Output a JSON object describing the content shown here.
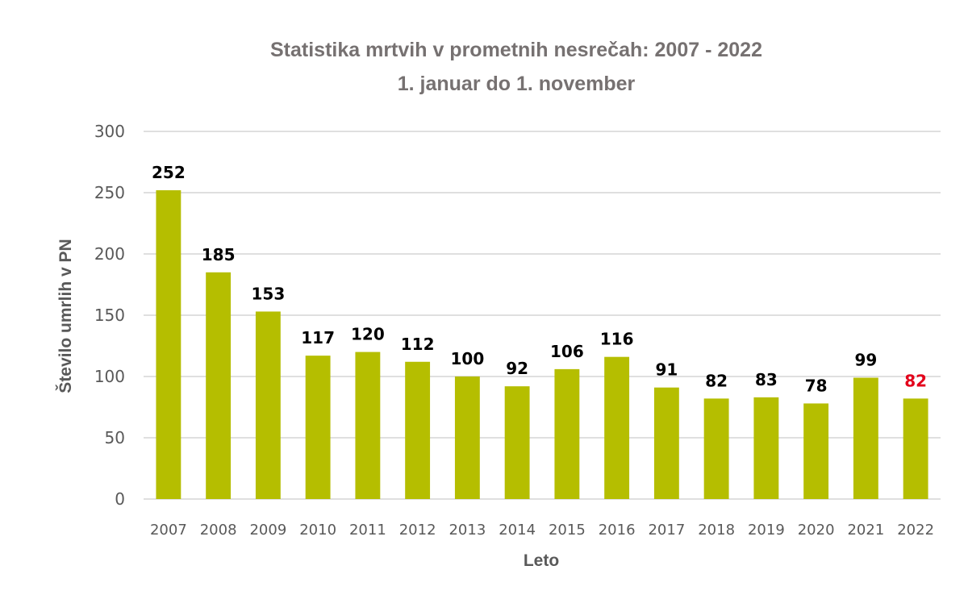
{
  "chart_data": {
    "type": "bar",
    "title": "Statistika mrtvih v prometnih nesrečah: 2007 - 2022",
    "subtitle": "1. januar do 1. november",
    "xlabel": "Leto",
    "ylabel": "Število umrlih v PN",
    "categories": [
      "2007",
      "2008",
      "2009",
      "2010",
      "2011",
      "2012",
      "2013",
      "2014",
      "2015",
      "2016",
      "2017",
      "2018",
      "2019",
      "2020",
      "2021",
      "2022"
    ],
    "values": [
      252,
      185,
      153,
      117,
      120,
      112,
      100,
      92,
      106,
      116,
      91,
      82,
      83,
      78,
      99,
      82
    ],
    "ylim": [
      0,
      300
    ],
    "yticks": [
      0,
      50,
      100,
      150,
      200,
      250,
      300
    ],
    "grid": true,
    "data_labels": true,
    "colors": {
      "bar": "#b5be00",
      "data_label": "#000000",
      "highlight_label": "#e3001b",
      "grid": "#bfbfbf",
      "title": "#767171",
      "axis_text": "#595959"
    },
    "highlight_index": 15
  }
}
